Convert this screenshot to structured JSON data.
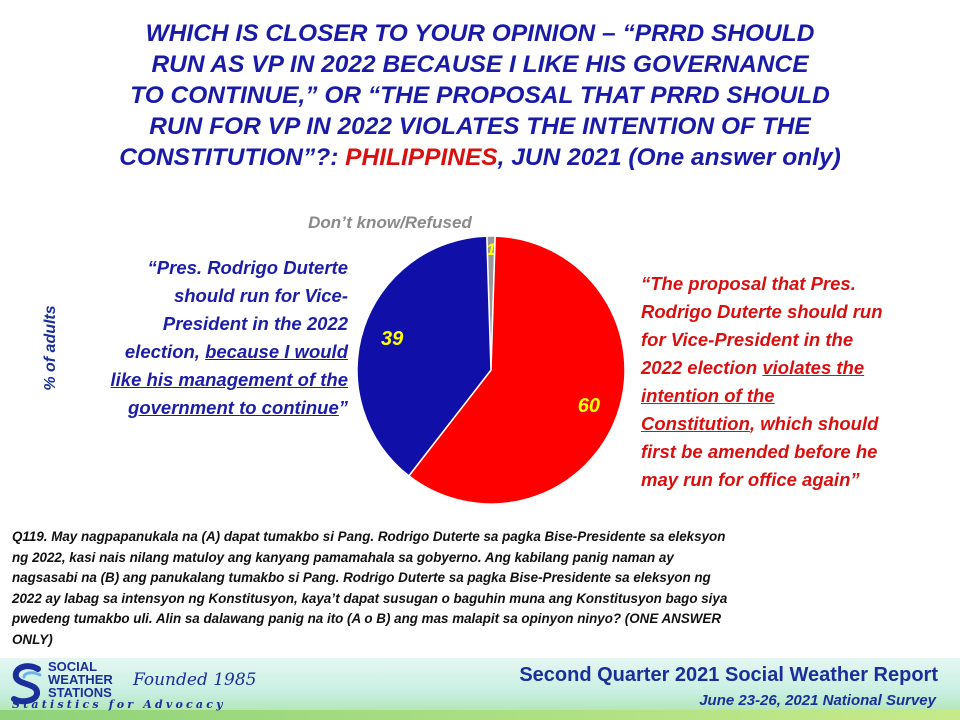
{
  "title": {
    "line1": "WHICH IS CLOSER TO YOUR OPINION – “PRRD SHOULD",
    "line2": "RUN AS VP IN 2022 BECAUSE I LIKE HIS GOVERNANCE",
    "line3": "TO CONTINUE,” OR “THE PROPOSAL THAT PRRD SHOULD",
    "line4": "RUN FOR VP IN 2022 VIOLATES THE INTENTION OF THE",
    "line5_a": "CONSTITUTION”?: ",
    "line5_highlight": "PHILIPPINES",
    "line5_b": ", JUN 2021 (One answer only)"
  },
  "colors": {
    "title": "#1a1aa8",
    "highlight": "#d81010",
    "slice_a": "#1010a8",
    "slice_b": "#ff0000",
    "slice_dk": "#9a9a9a",
    "value_label": "#ffff00"
  },
  "y_axis_label": "% of adults",
  "left_statement": {
    "line1": "“Pres. Rodrigo Duterte",
    "line2": "should run for Vice-",
    "line3": "President in the 2022",
    "line4_a": "election, ",
    "line4_u": "because I would",
    "line5_u": "like his management of the",
    "line6_u": "government to continue",
    "line6_b": "”"
  },
  "right_statement": {
    "line1": "“The proposal that Pres.",
    "line2": "Rodrigo Duterte should run",
    "line3": "for Vice-President in the",
    "line4_a": "2022 election ",
    "line4_u": "violates the",
    "line5_u": "intention of the",
    "line6_u": "Constitution",
    "line6_b": ", which should",
    "line7": "first be amended before he",
    "line8": "may run for office again”"
  },
  "chart_data": {
    "type": "pie",
    "unit": "% of adults",
    "slices": [
      {
        "label": "Don’t know/Refused",
        "value": 1
      },
      {
        "label": "violates the intention of the Constitution",
        "value": 60
      },
      {
        "label": "because I would like his management of the government to continue",
        "value": 39
      }
    ]
  },
  "question": {
    "line1": "Q119. May nagpapanukala  na (A) dapat  tumakbo  si Pang.  Rodrigo  Duterte  sa pagka  Bise-Presidente  sa eleksyon",
    "line2": "ng 2022, kasi nais nilang matuloy ang kanyang  pamamahala  sa gobyerno.  Ang kabilang  panig naman ay",
    "line3": "nagsasabi na (B) ang panukalang  tumakbo  si Pang. Rodrigo  Duterte sa pagka  Bise-Presidente  sa eleksyon  ng",
    "line4": "2022 ay labag sa intensyon ng Konstitusyon,  kaya’t  dapat susugan  o baguhin  muna ang Konstitusyon  bago siya",
    "line5": "pwedeng  tumakbo  uli. Alin sa dalawang  panig na ito (A o B) ang mas malapit  sa opinyon  ninyo?  (ONE ANSWER",
    "line6": "ONLY)"
  },
  "footer": {
    "logo_line1": "SOCIAL",
    "logo_line2": "WEATHER",
    "logo_line3": "STATIONS",
    "founded": "Founded 1985",
    "tagline": "Statistics for Advocacy",
    "report_title": "Second Quarter 2021 Social Weather Report",
    "report_subtitle": "June 23-26, 2021 National Survey"
  }
}
